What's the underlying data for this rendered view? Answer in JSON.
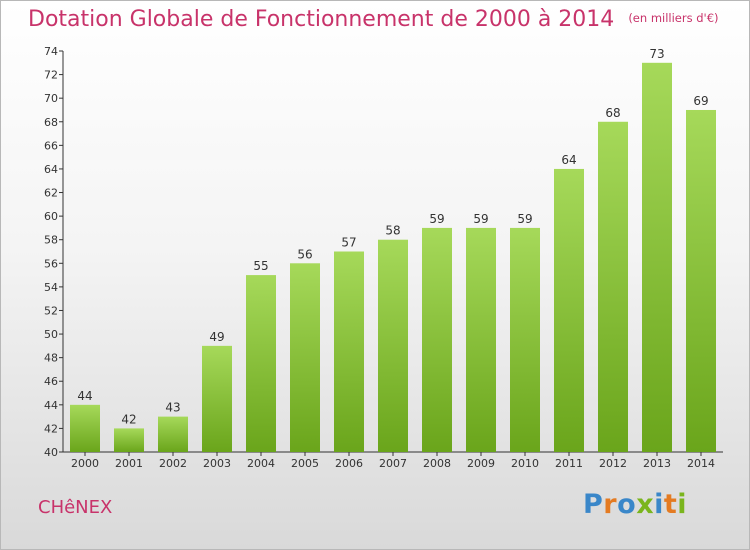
{
  "header": {
    "title": "Dotation Globale de Fonctionnement de 2000 à 2014",
    "unit": "(en milliers d'€)"
  },
  "footer": {
    "place": "CHêNEX",
    "logo": "Proxiti"
  },
  "colors": {
    "title": "#c8336a",
    "bar_light": "#a6d95a",
    "bar_dark": "#6aa51b",
    "logo_letters": [
      "#3a87c9",
      "#e47b22",
      "#3a87c9",
      "#7ab51d",
      "#3a87c9",
      "#e47b22",
      "#7ab51d"
    ]
  },
  "chart_data": {
    "type": "bar",
    "title": "Dotation Globale de Fonctionnement de 2000 à 2014",
    "subtitle": "(en milliers d'€)",
    "categories": [
      "2000",
      "2001",
      "2002",
      "2003",
      "2004",
      "2005",
      "2006",
      "2007",
      "2008",
      "2009",
      "2010",
      "2011",
      "2012",
      "2013",
      "2014"
    ],
    "values": [
      44,
      42,
      43,
      49,
      55,
      56,
      57,
      58,
      59,
      59,
      59,
      64,
      68,
      73,
      69
    ],
    "ylim": [
      40,
      74
    ],
    "yticks": [
      40,
      42,
      44,
      46,
      48,
      50,
      52,
      54,
      56,
      58,
      60,
      62,
      64,
      66,
      68,
      70,
      72,
      74
    ],
    "grid": false,
    "xlabel": "",
    "ylabel": ""
  }
}
